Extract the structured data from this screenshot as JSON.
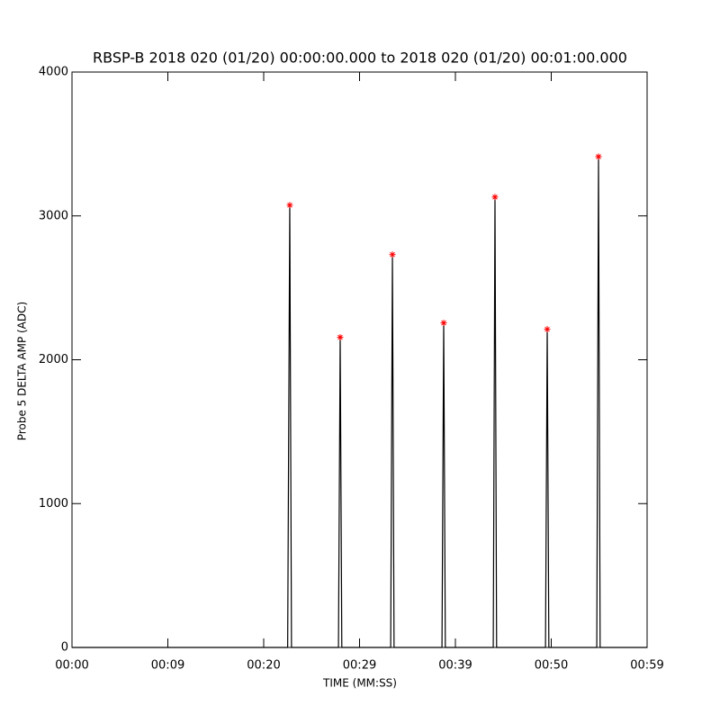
{
  "chart_data": {
    "type": "line",
    "title": "RBSP-B 2018 020 (01/20) 00:00:00.000 to 2018 020 (01/20) 00:01:00.000",
    "xlabel": "TIME (MM:SS)",
    "ylabel": "Probe 5 DELTA AMP (ADC)",
    "xlim": [
      0,
      60
    ],
    "ylim": [
      0,
      4000
    ],
    "xticks": [
      {
        "value": 0,
        "label": "00:00"
      },
      {
        "value": 10,
        "label": "00:09"
      },
      {
        "value": 20,
        "label": "00:20"
      },
      {
        "value": 30,
        "label": "00:29"
      },
      {
        "value": 40,
        "label": "00:39"
      },
      {
        "value": 50,
        "label": "00:50"
      },
      {
        "value": 60,
        "label": "00:59"
      }
    ],
    "yticks": [
      0,
      1000,
      2000,
      3000,
      4000
    ],
    "series": [
      {
        "color": "#000000",
        "marker": "none",
        "x": [
          0,
          22.5,
          22.72,
          22.9,
          27.8,
          27.98,
          28.15,
          33.25,
          33.43,
          33.6,
          38.6,
          38.78,
          38.95,
          43.95,
          44.13,
          44.3,
          49.4,
          49.58,
          49.75,
          54.75,
          54.93,
          55.1,
          60
        ],
        "values": [
          0,
          0,
          3075,
          0,
          0,
          2156,
          0,
          0,
          2731,
          0,
          0,
          2256,
          0,
          0,
          3131,
          0,
          0,
          2212,
          0,
          0,
          3412,
          0,
          0
        ]
      },
      {
        "color": "#ff0000",
        "marker": "star",
        "x": [
          22.72,
          27.98,
          33.43,
          38.78,
          44.13,
          49.58,
          54.93
        ],
        "values": [
          3075,
          2156,
          2731,
          2256,
          3131,
          2212,
          3412
        ]
      }
    ]
  }
}
